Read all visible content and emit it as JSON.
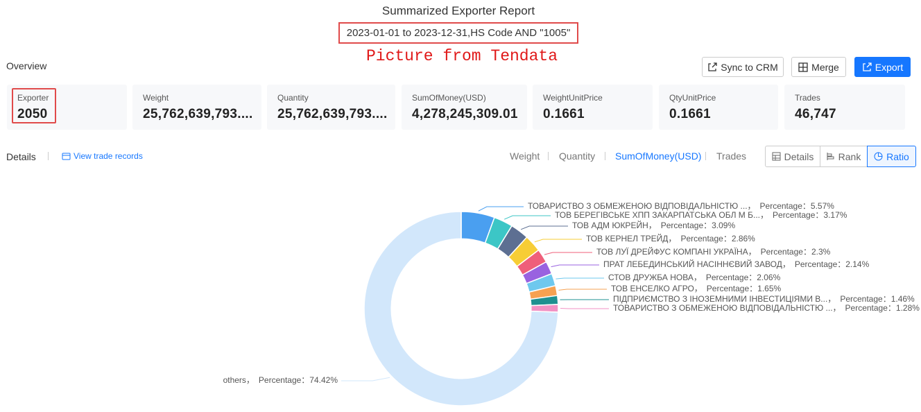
{
  "header": {
    "title": "Summarized Exporter Report",
    "subtitle": "2023-01-01 to 2023-12-31,HS Code AND \"1005\"",
    "watermark": "Picture from Tendata"
  },
  "overview": {
    "title": "Overview",
    "buttons": [
      "Sync to CRM",
      "Merge",
      "Export"
    ],
    "cards": [
      {
        "label": "Exporter",
        "value": "2050"
      },
      {
        "label": "Weight",
        "value": "25,762,639,793...."
      },
      {
        "label": "Quantity",
        "value": "25,762,639,793...."
      },
      {
        "label": "SumOfMoney(USD)",
        "value": "4,278,245,309.01"
      },
      {
        "label": "WeightUnitPrice",
        "value": "0.1661"
      },
      {
        "label": "QtyUnitPrice",
        "value": "0.1661"
      },
      {
        "label": "Trades",
        "value": "46,747"
      }
    ]
  },
  "details": {
    "title": "Details",
    "link": "View trade records",
    "metrics": [
      "Weight",
      "Quantity",
      "SumOfMoney(USD)",
      "Trades"
    ],
    "views": [
      "Details",
      "Rank",
      "Ratio"
    ]
  },
  "chart_data": {
    "type": "pie",
    "categories": [
      "ТОВАРИСТВО З ОБМЕЖЕНОЮ ВІДПОВІДАЛЬНІСТЮ ...，",
      "ТОВ БЕРЕГІВСЬКЕ ХПП ЗАКАРПАТСЬКА ОБЛ М Б...，",
      "ТОВ АДМ ЮКРЕЙН，",
      "ТОВ КЕРНЕЛ ТРЕЙД，",
      "ТОВ ЛУЇ ДРЕЙФУС КОМПАНІ УКРАЇНА，",
      "ПРАТ ЛЕБЕДИНСЬКИЙ НАСІННЄВИЙ ЗАВОД，",
      "СТОВ ДРУЖБА НОВА，",
      "ТОВ ЕНСЕЛКО АГРО，",
      "ПІДПРИЄМСТВО З ІНОЗЕМНИМИ ІНВЕСТИЦІЯМИ В...，",
      "ТОВАРИСТВО З ОБМЕЖЕНОЮ ВІДПОВІДАЛЬНІСТЮ ...，",
      "others，"
    ],
    "values": [
      5.57,
      3.17,
      3.09,
      2.86,
      2.3,
      2.14,
      2.06,
      1.65,
      1.46,
      1.28,
      74.42
    ],
    "value_labels": [
      "Percentage：5.57%",
      "Percentage：3.17%",
      "Percentage：3.09%",
      "Percentage：2.86%",
      "Percentage：2.3%",
      "Percentage：2.14%",
      "Percentage：2.06%",
      "Percentage：1.65%",
      "Percentage：1.46%",
      "Percentage：1.28%",
      "Percentage：74.42%"
    ],
    "colors": [
      "#4a9ff0",
      "#3cc6c6",
      "#5d6f92",
      "#f7cd35",
      "#ef5f7a",
      "#9962e0",
      "#6ec8ee",
      "#f6a151",
      "#1e9090",
      "#f292c4",
      "#d2e7fb"
    ],
    "inner_radius_ratio": 0.72
  }
}
